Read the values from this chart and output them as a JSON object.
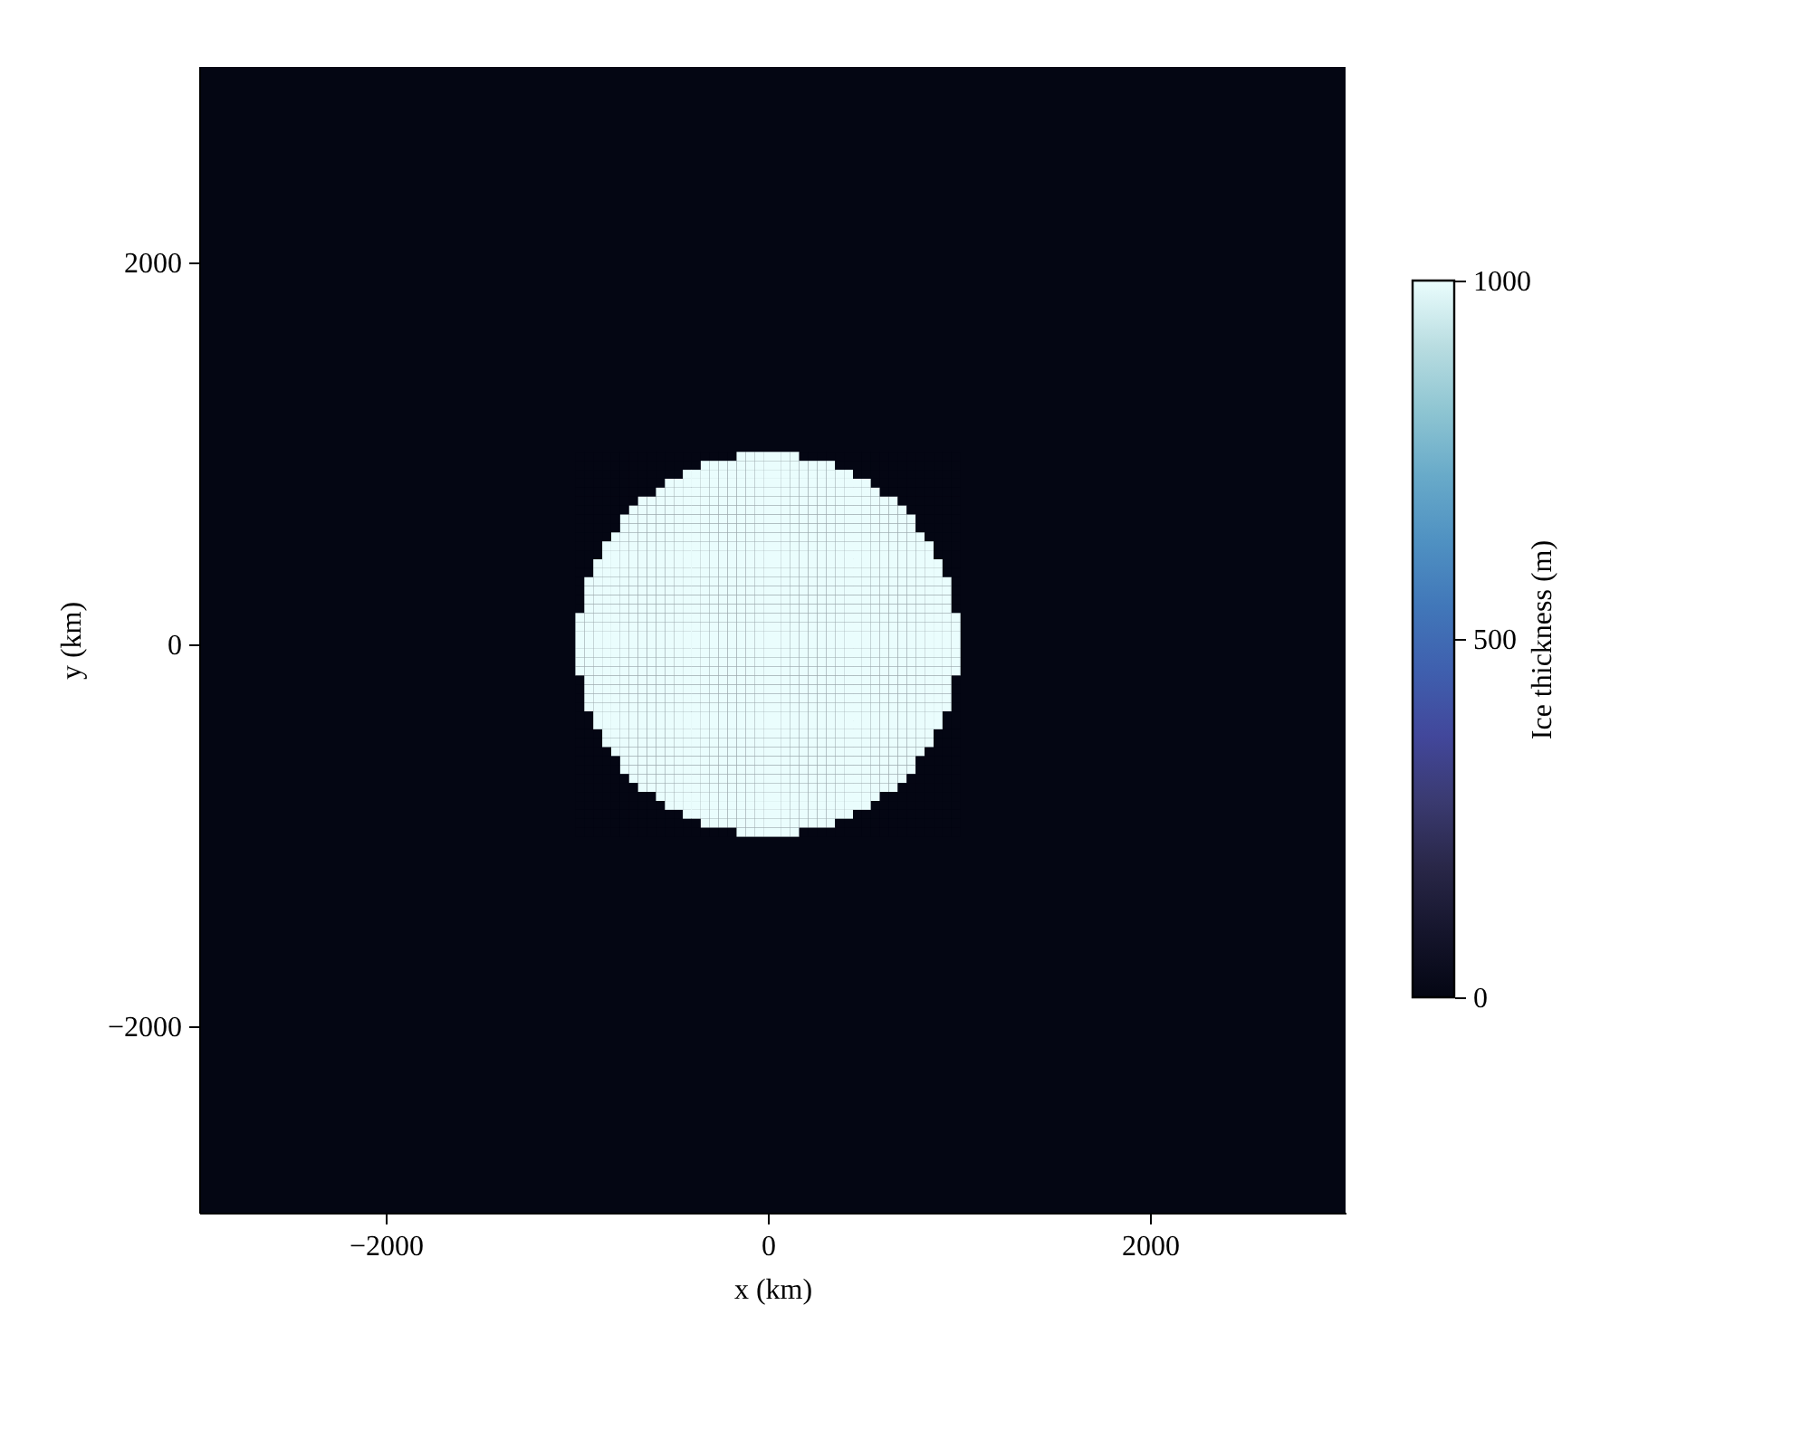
{
  "chart_data": {
    "type": "heatmap",
    "xlabel": "x (km)",
    "ylabel": "y (km)",
    "clabel": "Ice thickness (m)",
    "xlim": [
      -2976.5625,
      3023.4375
    ],
    "ylim": [
      -2976.5625,
      3023.4375
    ],
    "xticks": [
      -2000,
      0,
      2000
    ],
    "yticks": [
      -2000,
      0,
      2000
    ],
    "clim": [
      0,
      1000
    ],
    "cticks": [
      0,
      500,
      1000
    ],
    "x": [
      -984.375,
      -937.5,
      -890.625,
      -843.75,
      -796.875,
      -750,
      -703.125,
      -656.25,
      -609.375,
      -562.5,
      -515.625,
      -468.75,
      -421.875,
      -375,
      -328.125,
      -281.25,
      -234.375,
      -187.5,
      -140.625,
      -93.75,
      -46.875,
      0,
      46.875,
      93.75,
      140.625,
      187.5,
      234.375,
      281.25,
      328.125,
      375,
      421.875,
      468.75,
      515.625,
      562.5,
      609.375,
      656.25,
      703.125,
      750,
      796.875,
      843.75,
      890.625,
      937.5,
      984.375
    ],
    "y": [
      984.375,
      937.5,
      890.625,
      843.75,
      796.875,
      750,
      703.125,
      656.25,
      609.375,
      562.5,
      515.625,
      468.75,
      421.875,
      375,
      328.125,
      281.25,
      234.375,
      187.5,
      140.625,
      93.75,
      46.875,
      0,
      -46.875,
      -93.75,
      -140.625,
      -187.5,
      -234.375,
      -281.25,
      -328.125,
      -375,
      -421.875,
      -468.75,
      -515.625,
      -562.5,
      -609.375,
      -656.25,
      -703.125,
      -750,
      -796.875,
      -843.75,
      -890.625,
      -937.5,
      -984.375
    ],
    "cells": [
      [
        0,
        0,
        0,
        0,
        0,
        0,
        0,
        0,
        0,
        0,
        0,
        0,
        0,
        0,
        0,
        0,
        0,
        0,
        1000,
        1000,
        1000,
        1000,
        1000,
        1000,
        1000,
        0,
        0,
        0,
        0,
        0,
        0,
        0,
        0,
        0,
        0,
        0,
        0,
        0,
        0,
        0,
        0,
        0,
        0
      ],
      [
        0,
        0,
        0,
        0,
        0,
        0,
        0,
        0,
        0,
        0,
        0,
        0,
        0,
        0,
        1000,
        1000,
        1000,
        1000,
        1000,
        1000,
        1000,
        1000,
        1000,
        1000,
        1000,
        1000,
        1000,
        1000,
        1000,
        0,
        0,
        0,
        0,
        0,
        0,
        0,
        0,
        0,
        0,
        0,
        0,
        0,
        0
      ],
      [
        0,
        0,
        0,
        0,
        0,
        0,
        0,
        0,
        0,
        0,
        0,
        0,
        1000,
        1000,
        1000,
        1000,
        1000,
        1000,
        1000,
        1000,
        1000,
        1000,
        1000,
        1000,
        1000,
        1000,
        1000,
        1000,
        1000,
        1000,
        1000,
        0,
        0,
        0,
        0,
        0,
        0,
        0,
        0,
        0,
        0,
        0,
        0
      ],
      [
        0,
        0,
        0,
        0,
        0,
        0,
        0,
        0,
        0,
        0,
        1000,
        1000,
        1000,
        1000,
        1000,
        1000,
        1000,
        1000,
        1000,
        1000,
        1000,
        1000,
        1000,
        1000,
        1000,
        1000,
        1000,
        1000,
        1000,
        1000,
        1000,
        1000,
        1000,
        0,
        0,
        0,
        0,
        0,
        0,
        0,
        0,
        0,
        0
      ],
      [
        0,
        0,
        0,
        0,
        0,
        0,
        0,
        0,
        0,
        1000,
        1000,
        1000,
        1000,
        1000,
        1000,
        1000,
        1000,
        1000,
        1000,
        1000,
        1000,
        1000,
        1000,
        1000,
        1000,
        1000,
        1000,
        1000,
        1000,
        1000,
        1000,
        1000,
        1000,
        1000,
        0,
        0,
        0,
        0,
        0,
        0,
        0,
        0,
        0
      ],
      [
        0,
        0,
        0,
        0,
        0,
        0,
        0,
        1000,
        1000,
        1000,
        1000,
        1000,
        1000,
        1000,
        1000,
        1000,
        1000,
        1000,
        1000,
        1000,
        1000,
        1000,
        1000,
        1000,
        1000,
        1000,
        1000,
        1000,
        1000,
        1000,
        1000,
        1000,
        1000,
        1000,
        1000,
        1000,
        0,
        0,
        0,
        0,
        0,
        0,
        0
      ],
      [
        0,
        0,
        0,
        0,
        0,
        0,
        1000,
        1000,
        1000,
        1000,
        1000,
        1000,
        1000,
        1000,
        1000,
        1000,
        1000,
        1000,
        1000,
        1000,
        1000,
        1000,
        1000,
        1000,
        1000,
        1000,
        1000,
        1000,
        1000,
        1000,
        1000,
        1000,
        1000,
        1000,
        1000,
        1000,
        1000,
        0,
        0,
        0,
        0,
        0,
        0
      ],
      [
        0,
        0,
        0,
        0,
        0,
        1000,
        1000,
        1000,
        1000,
        1000,
        1000,
        1000,
        1000,
        1000,
        1000,
        1000,
        1000,
        1000,
        1000,
        1000,
        1000,
        1000,
        1000,
        1000,
        1000,
        1000,
        1000,
        1000,
        1000,
        1000,
        1000,
        1000,
        1000,
        1000,
        1000,
        1000,
        1000,
        1000,
        0,
        0,
        0,
        0,
        0
      ],
      [
        0,
        0,
        0,
        0,
        0,
        1000,
        1000,
        1000,
        1000,
        1000,
        1000,
        1000,
        1000,
        1000,
        1000,
        1000,
        1000,
        1000,
        1000,
        1000,
        1000,
        1000,
        1000,
        1000,
        1000,
        1000,
        1000,
        1000,
        1000,
        1000,
        1000,
        1000,
        1000,
        1000,
        1000,
        1000,
        1000,
        1000,
        0,
        0,
        0,
        0,
        0
      ],
      [
        0,
        0,
        0,
        0,
        1000,
        1000,
        1000,
        1000,
        1000,
        1000,
        1000,
        1000,
        1000,
        1000,
        1000,
        1000,
        1000,
        1000,
        1000,
        1000,
        1000,
        1000,
        1000,
        1000,
        1000,
        1000,
        1000,
        1000,
        1000,
        1000,
        1000,
        1000,
        1000,
        1000,
        1000,
        1000,
        1000,
        1000,
        1000,
        0,
        0,
        0,
        0
      ],
      [
        0,
        0,
        0,
        1000,
        1000,
        1000,
        1000,
        1000,
        1000,
        1000,
        1000,
        1000,
        1000,
        1000,
        1000,
        1000,
        1000,
        1000,
        1000,
        1000,
        1000,
        1000,
        1000,
        1000,
        1000,
        1000,
        1000,
        1000,
        1000,
        1000,
        1000,
        1000,
        1000,
        1000,
        1000,
        1000,
        1000,
        1000,
        1000,
        1000,
        0,
        0,
        0
      ],
      [
        0,
        0,
        0,
        1000,
        1000,
        1000,
        1000,
        1000,
        1000,
        1000,
        1000,
        1000,
        1000,
        1000,
        1000,
        1000,
        1000,
        1000,
        1000,
        1000,
        1000,
        1000,
        1000,
        1000,
        1000,
        1000,
        1000,
        1000,
        1000,
        1000,
        1000,
        1000,
        1000,
        1000,
        1000,
        1000,
        1000,
        1000,
        1000,
        1000,
        0,
        0,
        0
      ],
      [
        0,
        0,
        1000,
        1000,
        1000,
        1000,
        1000,
        1000,
        1000,
        1000,
        1000,
        1000,
        1000,
        1000,
        1000,
        1000,
        1000,
        1000,
        1000,
        1000,
        1000,
        1000,
        1000,
        1000,
        1000,
        1000,
        1000,
        1000,
        1000,
        1000,
        1000,
        1000,
        1000,
        1000,
        1000,
        1000,
        1000,
        1000,
        1000,
        1000,
        1000,
        0,
        0
      ],
      [
        0,
        0,
        1000,
        1000,
        1000,
        1000,
        1000,
        1000,
        1000,
        1000,
        1000,
        1000,
        1000,
        1000,
        1000,
        1000,
        1000,
        1000,
        1000,
        1000,
        1000,
        1000,
        1000,
        1000,
        1000,
        1000,
        1000,
        1000,
        1000,
        1000,
        1000,
        1000,
        1000,
        1000,
        1000,
        1000,
        1000,
        1000,
        1000,
        1000,
        1000,
        0,
        0
      ],
      [
        0,
        1000,
        1000,
        1000,
        1000,
        1000,
        1000,
        1000,
        1000,
        1000,
        1000,
        1000,
        1000,
        1000,
        1000,
        1000,
        1000,
        1000,
        1000,
        1000,
        1000,
        1000,
        1000,
        1000,
        1000,
        1000,
        1000,
        1000,
        1000,
        1000,
        1000,
        1000,
        1000,
        1000,
        1000,
        1000,
        1000,
        1000,
        1000,
        1000,
        1000,
        1000,
        0
      ],
      [
        0,
        1000,
        1000,
        1000,
        1000,
        1000,
        1000,
        1000,
        1000,
        1000,
        1000,
        1000,
        1000,
        1000,
        1000,
        1000,
        1000,
        1000,
        1000,
        1000,
        1000,
        1000,
        1000,
        1000,
        1000,
        1000,
        1000,
        1000,
        1000,
        1000,
        1000,
        1000,
        1000,
        1000,
        1000,
        1000,
        1000,
        1000,
        1000,
        1000,
        1000,
        1000,
        0
      ],
      [
        0,
        1000,
        1000,
        1000,
        1000,
        1000,
        1000,
        1000,
        1000,
        1000,
        1000,
        1000,
        1000,
        1000,
        1000,
        1000,
        1000,
        1000,
        1000,
        1000,
        1000,
        1000,
        1000,
        1000,
        1000,
        1000,
        1000,
        1000,
        1000,
        1000,
        1000,
        1000,
        1000,
        1000,
        1000,
        1000,
        1000,
        1000,
        1000,
        1000,
        1000,
        1000,
        0
      ],
      [
        0,
        1000,
        1000,
        1000,
        1000,
        1000,
        1000,
        1000,
        1000,
        1000,
        1000,
        1000,
        1000,
        1000,
        1000,
        1000,
        1000,
        1000,
        1000,
        1000,
        1000,
        1000,
        1000,
        1000,
        1000,
        1000,
        1000,
        1000,
        1000,
        1000,
        1000,
        1000,
        1000,
        1000,
        1000,
        1000,
        1000,
        1000,
        1000,
        1000,
        1000,
        1000,
        0
      ],
      [
        1000,
        1000,
        1000,
        1000,
        1000,
        1000,
        1000,
        1000,
        1000,
        1000,
        1000,
        1000,
        1000,
        1000,
        1000,
        1000,
        1000,
        1000,
        1000,
        1000,
        1000,
        1000,
        1000,
        1000,
        1000,
        1000,
        1000,
        1000,
        1000,
        1000,
        1000,
        1000,
        1000,
        1000,
        1000,
        1000,
        1000,
        1000,
        1000,
        1000,
        1000,
        1000,
        1000
      ],
      [
        1000,
        1000,
        1000,
        1000,
        1000,
        1000,
        1000,
        1000,
        1000,
        1000,
        1000,
        1000,
        1000,
        1000,
        1000,
        1000,
        1000,
        1000,
        1000,
        1000,
        1000,
        1000,
        1000,
        1000,
        1000,
        1000,
        1000,
        1000,
        1000,
        1000,
        1000,
        1000,
        1000,
        1000,
        1000,
        1000,
        1000,
        1000,
        1000,
        1000,
        1000,
        1000,
        1000
      ],
      [
        1000,
        1000,
        1000,
        1000,
        1000,
        1000,
        1000,
        1000,
        1000,
        1000,
        1000,
        1000,
        1000,
        1000,
        1000,
        1000,
        1000,
        1000,
        1000,
        1000,
        1000,
        1000,
        1000,
        1000,
        1000,
        1000,
        1000,
        1000,
        1000,
        1000,
        1000,
        1000,
        1000,
        1000,
        1000,
        1000,
        1000,
        1000,
        1000,
        1000,
        1000,
        1000,
        1000
      ],
      [
        1000,
        1000,
        1000,
        1000,
        1000,
        1000,
        1000,
        1000,
        1000,
        1000,
        1000,
        1000,
        1000,
        1000,
        1000,
        1000,
        1000,
        1000,
        1000,
        1000,
        1000,
        1000,
        1000,
        1000,
        1000,
        1000,
        1000,
        1000,
        1000,
        1000,
        1000,
        1000,
        1000,
        1000,
        1000,
        1000,
        1000,
        1000,
        1000,
        1000,
        1000,
        1000,
        1000
      ],
      [
        1000,
        1000,
        1000,
        1000,
        1000,
        1000,
        1000,
        1000,
        1000,
        1000,
        1000,
        1000,
        1000,
        1000,
        1000,
        1000,
        1000,
        1000,
        1000,
        1000,
        1000,
        1000,
        1000,
        1000,
        1000,
        1000,
        1000,
        1000,
        1000,
        1000,
        1000,
        1000,
        1000,
        1000,
        1000,
        1000,
        1000,
        1000,
        1000,
        1000,
        1000,
        1000,
        1000
      ],
      [
        1000,
        1000,
        1000,
        1000,
        1000,
        1000,
        1000,
        1000,
        1000,
        1000,
        1000,
        1000,
        1000,
        1000,
        1000,
        1000,
        1000,
        1000,
        1000,
        1000,
        1000,
        1000,
        1000,
        1000,
        1000,
        1000,
        1000,
        1000,
        1000,
        1000,
        1000,
        1000,
        1000,
        1000,
        1000,
        1000,
        1000,
        1000,
        1000,
        1000,
        1000,
        1000,
        1000
      ],
      [
        1000,
        1000,
        1000,
        1000,
        1000,
        1000,
        1000,
        1000,
        1000,
        1000,
        1000,
        1000,
        1000,
        1000,
        1000,
        1000,
        1000,
        1000,
        1000,
        1000,
        1000,
        1000,
        1000,
        1000,
        1000,
        1000,
        1000,
        1000,
        1000,
        1000,
        1000,
        1000,
        1000,
        1000,
        1000,
        1000,
        1000,
        1000,
        1000,
        1000,
        1000,
        1000,
        1000
      ],
      [
        0,
        1000,
        1000,
        1000,
        1000,
        1000,
        1000,
        1000,
        1000,
        1000,
        1000,
        1000,
        1000,
        1000,
        1000,
        1000,
        1000,
        1000,
        1000,
        1000,
        1000,
        1000,
        1000,
        1000,
        1000,
        1000,
        1000,
        1000,
        1000,
        1000,
        1000,
        1000,
        1000,
        1000,
        1000,
        1000,
        1000,
        1000,
        1000,
        1000,
        1000,
        1000,
        0
      ],
      [
        0,
        1000,
        1000,
        1000,
        1000,
        1000,
        1000,
        1000,
        1000,
        1000,
        1000,
        1000,
        1000,
        1000,
        1000,
        1000,
        1000,
        1000,
        1000,
        1000,
        1000,
        1000,
        1000,
        1000,
        1000,
        1000,
        1000,
        1000,
        1000,
        1000,
        1000,
        1000,
        1000,
        1000,
        1000,
        1000,
        1000,
        1000,
        1000,
        1000,
        1000,
        1000,
        0
      ],
      [
        0,
        1000,
        1000,
        1000,
        1000,
        1000,
        1000,
        1000,
        1000,
        1000,
        1000,
        1000,
        1000,
        1000,
        1000,
        1000,
        1000,
        1000,
        1000,
        1000,
        1000,
        1000,
        1000,
        1000,
        1000,
        1000,
        1000,
        1000,
        1000,
        1000,
        1000,
        1000,
        1000,
        1000,
        1000,
        1000,
        1000,
        1000,
        1000,
        1000,
        1000,
        1000,
        0
      ],
      [
        0,
        1000,
        1000,
        1000,
        1000,
        1000,
        1000,
        1000,
        1000,
        1000,
        1000,
        1000,
        1000,
        1000,
        1000,
        1000,
        1000,
        1000,
        1000,
        1000,
        1000,
        1000,
        1000,
        1000,
        1000,
        1000,
        1000,
        1000,
        1000,
        1000,
        1000,
        1000,
        1000,
        1000,
        1000,
        1000,
        1000,
        1000,
        1000,
        1000,
        1000,
        1000,
        0
      ],
      [
        0,
        0,
        1000,
        1000,
        1000,
        1000,
        1000,
        1000,
        1000,
        1000,
        1000,
        1000,
        1000,
        1000,
        1000,
        1000,
        1000,
        1000,
        1000,
        1000,
        1000,
        1000,
        1000,
        1000,
        1000,
        1000,
        1000,
        1000,
        1000,
        1000,
        1000,
        1000,
        1000,
        1000,
        1000,
        1000,
        1000,
        1000,
        1000,
        1000,
        1000,
        0,
        0
      ],
      [
        0,
        0,
        1000,
        1000,
        1000,
        1000,
        1000,
        1000,
        1000,
        1000,
        1000,
        1000,
        1000,
        1000,
        1000,
        1000,
        1000,
        1000,
        1000,
        1000,
        1000,
        1000,
        1000,
        1000,
        1000,
        1000,
        1000,
        1000,
        1000,
        1000,
        1000,
        1000,
        1000,
        1000,
        1000,
        1000,
        1000,
        1000,
        1000,
        1000,
        1000,
        0,
        0
      ],
      [
        0,
        0,
        0,
        1000,
        1000,
        1000,
        1000,
        1000,
        1000,
        1000,
        1000,
        1000,
        1000,
        1000,
        1000,
        1000,
        1000,
        1000,
        1000,
        1000,
        1000,
        1000,
        1000,
        1000,
        1000,
        1000,
        1000,
        1000,
        1000,
        1000,
        1000,
        1000,
        1000,
        1000,
        1000,
        1000,
        1000,
        1000,
        1000,
        1000,
        0,
        0,
        0
      ],
      [
        0,
        0,
        0,
        1000,
        1000,
        1000,
        1000,
        1000,
        1000,
        1000,
        1000,
        1000,
        1000,
        1000,
        1000,
        1000,
        1000,
        1000,
        1000,
        1000,
        1000,
        1000,
        1000,
        1000,
        1000,
        1000,
        1000,
        1000,
        1000,
        1000,
        1000,
        1000,
        1000,
        1000,
        1000,
        1000,
        1000,
        1000,
        1000,
        1000,
        0,
        0,
        0
      ],
      [
        0,
        0,
        0,
        0,
        1000,
        1000,
        1000,
        1000,
        1000,
        1000,
        1000,
        1000,
        1000,
        1000,
        1000,
        1000,
        1000,
        1000,
        1000,
        1000,
        1000,
        1000,
        1000,
        1000,
        1000,
        1000,
        1000,
        1000,
        1000,
        1000,
        1000,
        1000,
        1000,
        1000,
        1000,
        1000,
        1000,
        1000,
        1000,
        0,
        0,
        0,
        0
      ],
      [
        0,
        0,
        0,
        0,
        0,
        1000,
        1000,
        1000,
        1000,
        1000,
        1000,
        1000,
        1000,
        1000,
        1000,
        1000,
        1000,
        1000,
        1000,
        1000,
        1000,
        1000,
        1000,
        1000,
        1000,
        1000,
        1000,
        1000,
        1000,
        1000,
        1000,
        1000,
        1000,
        1000,
        1000,
        1000,
        1000,
        1000,
        0,
        0,
        0,
        0,
        0
      ],
      [
        0,
        0,
        0,
        0,
        0,
        1000,
        1000,
        1000,
        1000,
        1000,
        1000,
        1000,
        1000,
        1000,
        1000,
        1000,
        1000,
        1000,
        1000,
        1000,
        1000,
        1000,
        1000,
        1000,
        1000,
        1000,
        1000,
        1000,
        1000,
        1000,
        1000,
        1000,
        1000,
        1000,
        1000,
        1000,
        1000,
        1000,
        0,
        0,
        0,
        0,
        0
      ],
      [
        0,
        0,
        0,
        0,
        0,
        0,
        1000,
        1000,
        1000,
        1000,
        1000,
        1000,
        1000,
        1000,
        1000,
        1000,
        1000,
        1000,
        1000,
        1000,
        1000,
        1000,
        1000,
        1000,
        1000,
        1000,
        1000,
        1000,
        1000,
        1000,
        1000,
        1000,
        1000,
        1000,
        1000,
        1000,
        1000,
        0,
        0,
        0,
        0,
        0,
        0
      ],
      [
        0,
        0,
        0,
        0,
        0,
        0,
        0,
        1000,
        1000,
        1000,
        1000,
        1000,
        1000,
        1000,
        1000,
        1000,
        1000,
        1000,
        1000,
        1000,
        1000,
        1000,
        1000,
        1000,
        1000,
        1000,
        1000,
        1000,
        1000,
        1000,
        1000,
        1000,
        1000,
        1000,
        1000,
        1000,
        0,
        0,
        0,
        0,
        0,
        0,
        0
      ],
      [
        0,
        0,
        0,
        0,
        0,
        0,
        0,
        0,
        0,
        1000,
        1000,
        1000,
        1000,
        1000,
        1000,
        1000,
        1000,
        1000,
        1000,
        1000,
        1000,
        1000,
        1000,
        1000,
        1000,
        1000,
        1000,
        1000,
        1000,
        1000,
        1000,
        1000,
        1000,
        1000,
        0,
        0,
        0,
        0,
        0,
        0,
        0,
        0,
        0
      ],
      [
        0,
        0,
        0,
        0,
        0,
        0,
        0,
        0,
        0,
        0,
        1000,
        1000,
        1000,
        1000,
        1000,
        1000,
        1000,
        1000,
        1000,
        1000,
        1000,
        1000,
        1000,
        1000,
        1000,
        1000,
        1000,
        1000,
        1000,
        1000,
        1000,
        1000,
        1000,
        0,
        0,
        0,
        0,
        0,
        0,
        0,
        0,
        0,
        0
      ],
      [
        0,
        0,
        0,
        0,
        0,
        0,
        0,
        0,
        0,
        0,
        0,
        0,
        1000,
        1000,
        1000,
        1000,
        1000,
        1000,
        1000,
        1000,
        1000,
        1000,
        1000,
        1000,
        1000,
        1000,
        1000,
        1000,
        1000,
        1000,
        1000,
        0,
        0,
        0,
        0,
        0,
        0,
        0,
        0,
        0,
        0,
        0,
        0
      ],
      [
        0,
        0,
        0,
        0,
        0,
        0,
        0,
        0,
        0,
        0,
        0,
        0,
        0,
        0,
        1000,
        1000,
        1000,
        1000,
        1000,
        1000,
        1000,
        1000,
        1000,
        1000,
        1000,
        1000,
        1000,
        1000,
        1000,
        0,
        0,
        0,
        0,
        0,
        0,
        0,
        0,
        0,
        0,
        0,
        0,
        0,
        0
      ],
      [
        0,
        0,
        0,
        0,
        0,
        0,
        0,
        0,
        0,
        0,
        0,
        0,
        0,
        0,
        0,
        0,
        0,
        0,
        1000,
        1000,
        1000,
        1000,
        1000,
        1000,
        1000,
        0,
        0,
        0,
        0,
        0,
        0,
        0,
        0,
        0,
        0,
        0,
        0,
        0,
        0,
        0,
        0,
        0,
        0
      ]
    ]
  }
}
